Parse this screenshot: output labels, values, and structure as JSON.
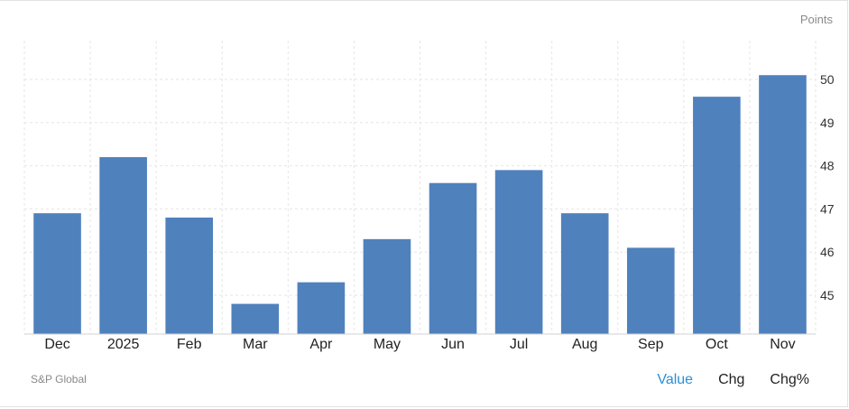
{
  "unit_label": "Points",
  "source": "S&P Global",
  "tabs": [
    {
      "label": "Value",
      "active": true
    },
    {
      "label": "Chg",
      "active": false
    },
    {
      "label": "Chg%",
      "active": false
    }
  ],
  "colors": {
    "bar": "#4f81bd",
    "grid": "#e6e6e6",
    "active_tab": "#2a8fd8"
  },
  "chart_data": {
    "type": "bar",
    "categories": [
      "Dec",
      "2025",
      "Feb",
      "Mar",
      "Apr",
      "May",
      "Jun",
      "Jul",
      "Aug",
      "Sep",
      "Oct",
      "Nov"
    ],
    "values": [
      46.9,
      48.2,
      46.8,
      44.8,
      45.3,
      46.3,
      47.6,
      47.9,
      46.9,
      46.1,
      49.6,
      50.1
    ],
    "title": "",
    "xlabel": "",
    "ylabel": "Points",
    "ylim": [
      44.1,
      50.9
    ],
    "yticks": [
      45,
      46,
      47,
      48,
      49,
      50
    ],
    "grid": true,
    "legend": "none"
  }
}
